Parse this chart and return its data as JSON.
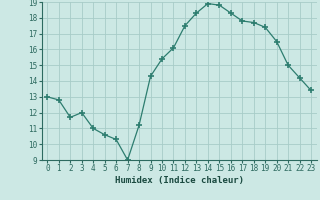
{
  "x": [
    0,
    1,
    2,
    3,
    4,
    5,
    6,
    7,
    8,
    9,
    10,
    11,
    12,
    13,
    14,
    15,
    16,
    17,
    18,
    19,
    20,
    21,
    22,
    23
  ],
  "y": [
    13.0,
    12.8,
    11.7,
    12.0,
    11.0,
    10.6,
    10.3,
    9.0,
    11.2,
    14.3,
    15.4,
    16.1,
    17.5,
    18.3,
    18.9,
    18.8,
    18.3,
    17.8,
    17.7,
    17.4,
    16.5,
    15.0,
    14.2,
    13.4
  ],
  "line_color": "#2d7d6f",
  "marker": "+",
  "marker_size": 4,
  "bg_color": "#cce8e4",
  "grid_color": "#a8ccc8",
  "xlabel": "Humidex (Indice chaleur)",
  "ylim": [
    9,
    19
  ],
  "xlim": [
    -0.5,
    23.5
  ],
  "yticks": [
    9,
    10,
    11,
    12,
    13,
    14,
    15,
    16,
    17,
    18,
    19
  ],
  "xticks": [
    0,
    1,
    2,
    3,
    4,
    5,
    6,
    7,
    8,
    9,
    10,
    11,
    12,
    13,
    14,
    15,
    16,
    17,
    18,
    19,
    20,
    21,
    22,
    23
  ],
  "xtick_labels": [
    "0",
    "1",
    "2",
    "3",
    "4",
    "5",
    "6",
    "7",
    "8",
    "9",
    "10",
    "11",
    "12",
    "13",
    "14",
    "15",
    "16",
    "17",
    "18",
    "19",
    "20",
    "21",
    "22",
    "23"
  ],
  "label_fontsize": 6.5,
  "tick_fontsize": 5.5,
  "tick_color": "#2d6a60",
  "xlabel_color": "#1a4a40"
}
